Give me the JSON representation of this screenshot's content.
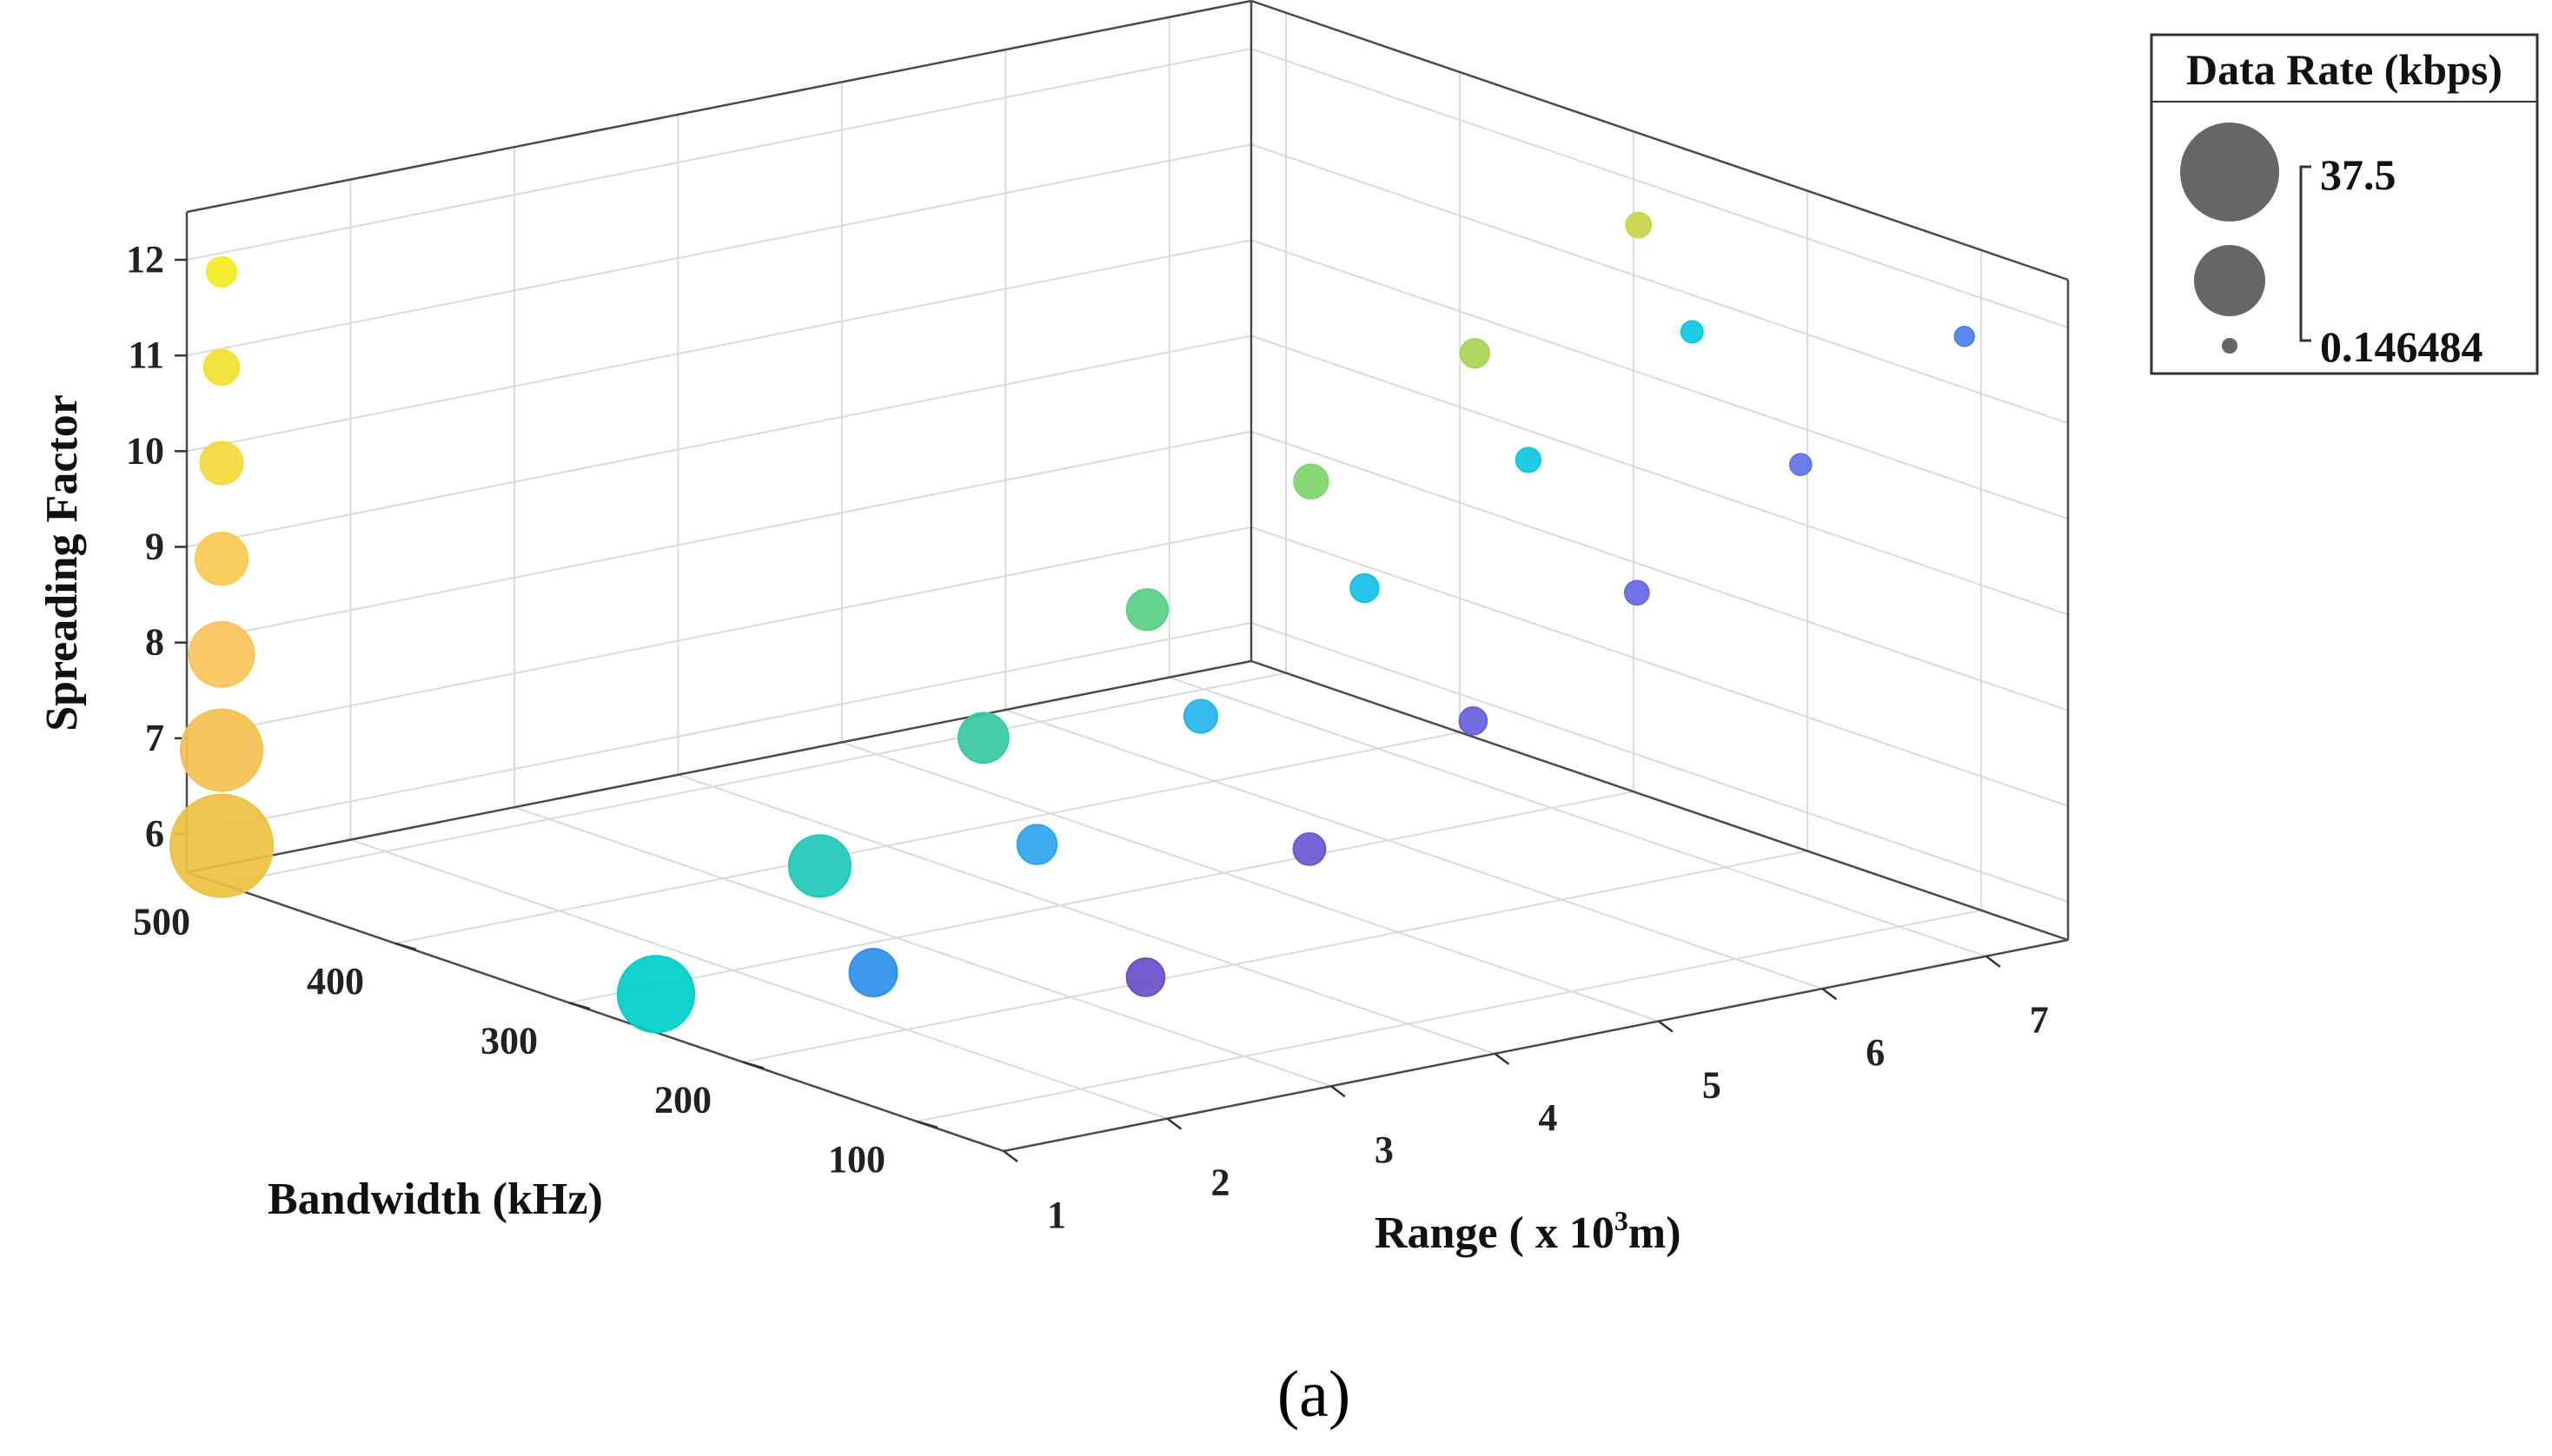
{
  "chart_data": {
    "type": "scatter3d",
    "x_axis": {
      "label_prefix": "Range ( x 10",
      "label_sup": "3",
      "label_suffix": "m)",
      "ticks": [
        "1",
        "2",
        "3",
        "4",
        "5",
        "6",
        "7"
      ],
      "range": [
        1,
        7.5
      ]
    },
    "y_axis": {
      "label": "Bandwidth (kHz)",
      "ticks": [
        "100",
        "200",
        "300",
        "400",
        "500"
      ],
      "range": [
        50,
        520
      ]
    },
    "z_axis": {
      "label": "Spreading Factor",
      "ticks": [
        "6",
        "7",
        "8",
        "9",
        "10",
        "11",
        "12"
      ],
      "range": [
        5.6,
        12.5
      ]
    },
    "grid": true,
    "legend": {
      "title": "Data Rate (kbps)",
      "max_label": "37.5",
      "min_label": "0.146484"
    },
    "panel_label": "(a)",
    "points": [
      {
        "range": 1,
        "bandwidth": 500,
        "sf": 6,
        "rate": 37.5,
        "color": "#EDC140"
      },
      {
        "range": 1,
        "bandwidth": 500,
        "sf": 7,
        "rate": 21.875,
        "color": "#F4C050"
      },
      {
        "range": 1,
        "bandwidth": 500,
        "sf": 8,
        "rate": 12.5,
        "color": "#F8C45A"
      },
      {
        "range": 1,
        "bandwidth": 500,
        "sf": 9,
        "rate": 7.03,
        "color": "#F9CA50"
      },
      {
        "range": 1,
        "bandwidth": 500,
        "sf": 10,
        "rate": 3.9,
        "color": "#F6DA3A"
      },
      {
        "range": 1,
        "bandwidth": 500,
        "sf": 11,
        "rate": 2.148,
        "color": "#F2E22C"
      },
      {
        "range": 1,
        "bandwidth": 500,
        "sf": 12,
        "rate": 1.17,
        "color": "#F3EC20"
      },
      {
        "range": 1,
        "bandwidth": 250,
        "sf": 6,
        "rate": 18.75,
        "color": "#00CFCB"
      },
      {
        "range": 2,
        "bandwidth": 250,
        "sf": 7,
        "rate": 10.9,
        "color": "#1EC9B8"
      },
      {
        "range": 3,
        "bandwidth": 250,
        "sf": 8,
        "rate": 6.25,
        "color": "#38C9A2"
      },
      {
        "range": 4,
        "bandwidth": 250,
        "sf": 9,
        "rate": 3.5,
        "color": "#58D084"
      },
      {
        "range": 5,
        "bandwidth": 250,
        "sf": 10,
        "rate": 1.95,
        "color": "#7ED56A"
      },
      {
        "range": 6,
        "bandwidth": 250,
        "sf": 11,
        "rate": 1.07,
        "color": "#A8D454"
      },
      {
        "range": 7,
        "bandwidth": 250,
        "sf": 12,
        "rate": 0.59,
        "color": "#C8D44A"
      },
      {
        "range": 1,
        "bandwidth": 125,
        "sf": 7,
        "rate": 5.47,
        "color": "#2E8FEA"
      },
      {
        "range": 2,
        "bandwidth": 125,
        "sf": 8,
        "rate": 3.125,
        "color": "#2FA6EE"
      },
      {
        "range": 3,
        "bandwidth": 125,
        "sf": 9,
        "rate": 1.76,
        "color": "#25B5EC"
      },
      {
        "range": 4,
        "bandwidth": 125,
        "sf": 10,
        "rate": 0.98,
        "color": "#17C0E8"
      },
      {
        "range": 5,
        "bandwidth": 125,
        "sf": 11,
        "rate": 0.54,
        "color": "#0EC6E3"
      },
      {
        "range": 6,
        "bandwidth": 125,
        "sf": 12,
        "rate": 0.29,
        "color": "#08CADF"
      },
      {
        "range": 2,
        "bandwidth": 62.5,
        "sf": 7,
        "rate": 2.73,
        "color": "#6A4FC9"
      },
      {
        "range": 3,
        "bandwidth": 62.5,
        "sf": 8,
        "rate": 1.56,
        "color": "#6B58D4"
      },
      {
        "range": 4,
        "bandwidth": 62.5,
        "sf": 9,
        "rate": 0.88,
        "color": "#6860DE"
      },
      {
        "range": 5,
        "bandwidth": 62.5,
        "sf": 10,
        "rate": 0.49,
        "color": "#6468E4"
      },
      {
        "range": 6,
        "bandwidth": 62.5,
        "sf": 11,
        "rate": 0.27,
        "color": "#5F72EA"
      },
      {
        "range": 7,
        "bandwidth": 62.5,
        "sf": 12,
        "rate": 0.146484,
        "color": "#4E7EEE"
      }
    ]
  }
}
